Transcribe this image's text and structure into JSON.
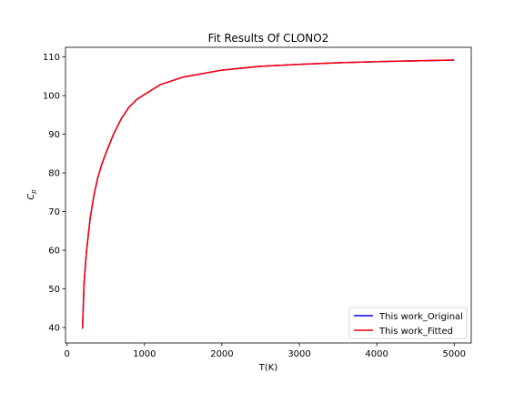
{
  "chart_data": {
    "type": "line",
    "title": "Fit Results Of CLONO2",
    "xlabel": "T(K)",
    "ylabel": "C_p",
    "xlim": [
      -20,
      5220
    ],
    "ylim": [
      36,
      112.5
    ],
    "xticks": [
      0,
      1000,
      2000,
      3000,
      4000,
      5000
    ],
    "yticks": [
      40,
      50,
      60,
      70,
      80,
      90,
      100,
      110
    ],
    "grid": false,
    "legend_position": "lower right",
    "series": [
      {
        "name": "This work_Original",
        "color": "#0000ff",
        "x": [
          200,
          220,
          250,
          300,
          350,
          400,
          450,
          500,
          600,
          700,
          800,
          900,
          1000,
          1200,
          1500,
          2000,
          2500,
          3000,
          3500,
          4000,
          4500,
          5000
        ],
        "y": [
          39.7,
          51.5,
          59.5,
          68.5,
          74.5,
          79.0,
          82.3,
          85.0,
          90.0,
          94.0,
          97.0,
          99.0,
          100.3,
          102.8,
          104.8,
          106.6,
          107.6,
          108.1,
          108.5,
          108.8,
          109.0,
          109.2
        ]
      },
      {
        "name": "This work_Fitted",
        "color": "#ff0000",
        "x": [
          200,
          220,
          250,
          300,
          350,
          400,
          450,
          500,
          600,
          700,
          800,
          900,
          1000,
          1200,
          1500,
          2000,
          2500,
          3000,
          3500,
          4000,
          4500,
          5000
        ],
        "y": [
          39.7,
          51.5,
          59.5,
          68.5,
          74.5,
          79.0,
          82.3,
          85.0,
          90.0,
          94.0,
          97.0,
          99.0,
          100.3,
          102.8,
          104.8,
          106.6,
          107.6,
          108.1,
          108.5,
          108.8,
          109.0,
          109.2
        ]
      }
    ]
  }
}
